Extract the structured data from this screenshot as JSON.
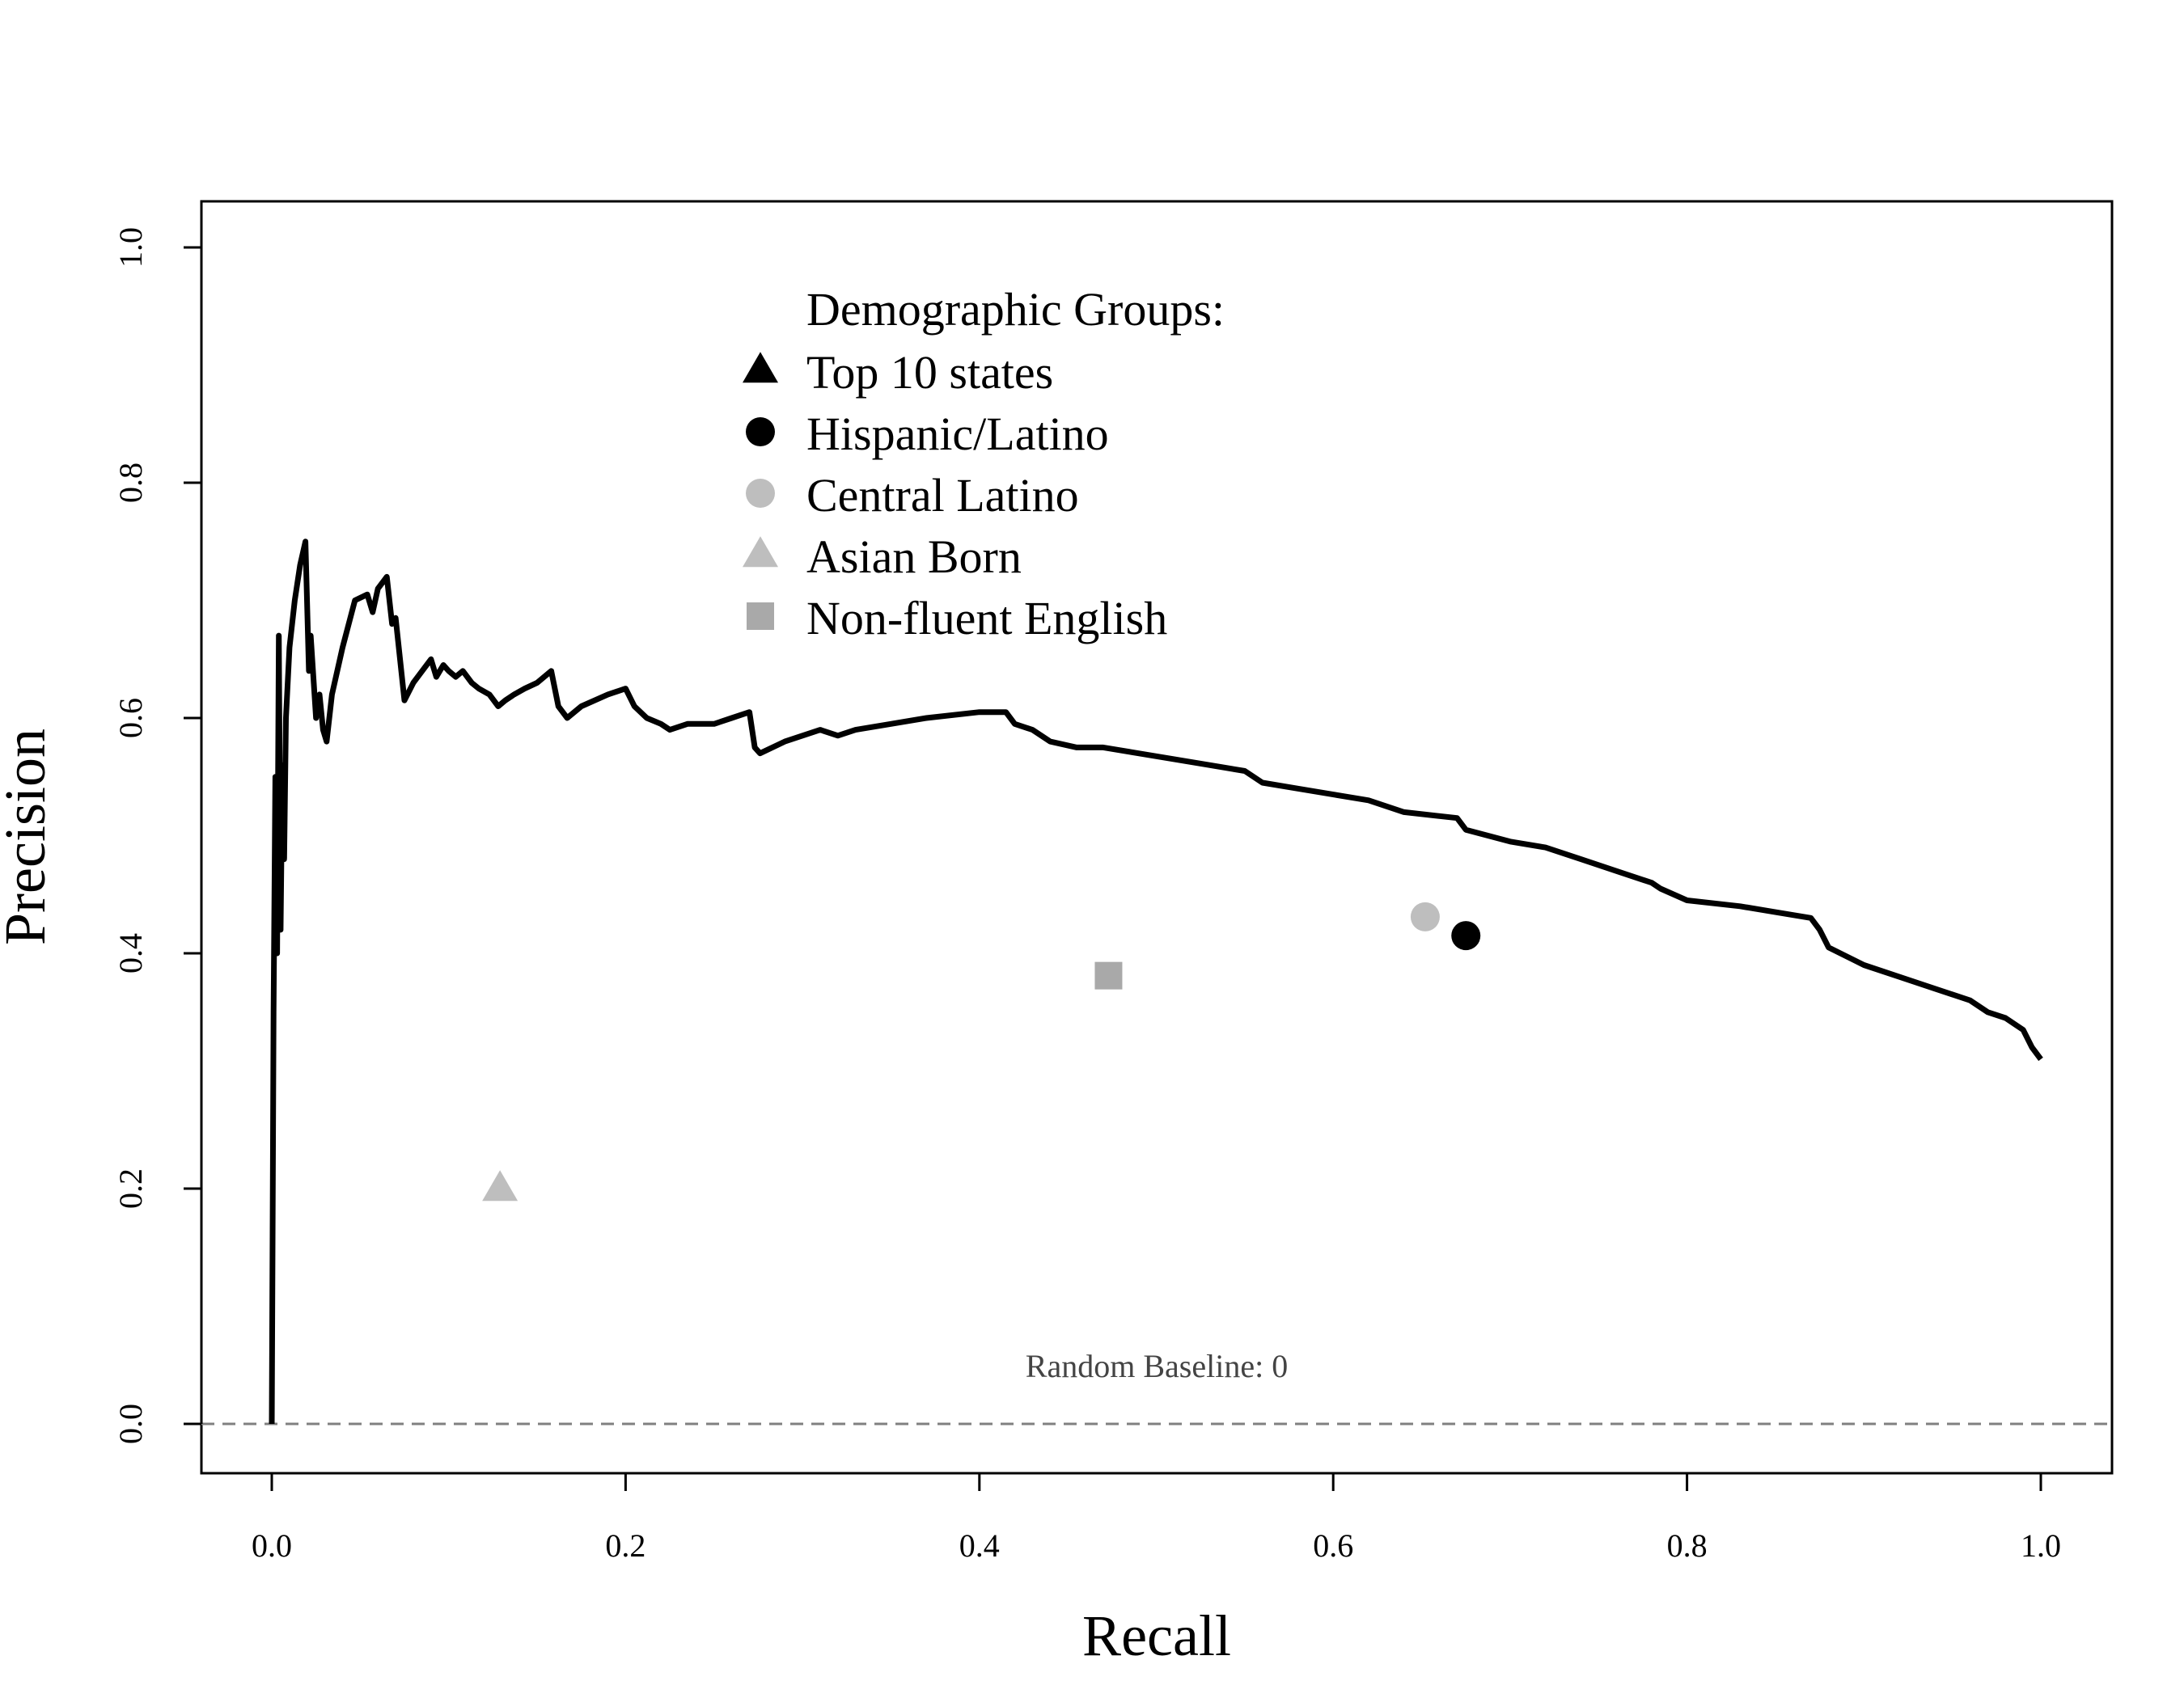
{
  "chart_data": {
    "type": "line",
    "xlabel": "Recall",
    "ylabel": "Precision",
    "xlim": [
      0,
      1
    ],
    "ylim": [
      0,
      1
    ],
    "x_ticks": [
      "0.0",
      "0.2",
      "0.4",
      "0.6",
      "0.8",
      "1.0"
    ],
    "y_ticks": [
      "0.0",
      "0.2",
      "0.4",
      "0.6",
      "0.8",
      "1.0"
    ],
    "grid": false,
    "legend_position": "top-center",
    "series": [
      {
        "color": "#000000",
        "x": [
          0.0,
          0.001,
          0.002,
          0.003,
          0.004,
          0.005,
          0.006,
          0.007,
          0.008,
          0.01,
          0.013,
          0.016,
          0.019,
          0.021,
          0.022,
          0.025,
          0.027,
          0.029,
          0.031,
          0.034,
          0.04,
          0.047,
          0.054,
          0.057,
          0.06,
          0.065,
          0.068,
          0.07,
          0.075,
          0.08,
          0.09,
          0.093,
          0.097,
          0.1,
          0.104,
          0.108,
          0.113,
          0.117,
          0.123,
          0.128,
          0.132,
          0.137,
          0.143,
          0.15,
          0.158,
          0.162,
          0.167,
          0.175,
          0.19,
          0.2,
          0.205,
          0.212,
          0.22,
          0.225,
          0.235,
          0.25,
          0.26,
          0.27,
          0.273,
          0.276,
          0.29,
          0.31,
          0.32,
          0.33,
          0.35,
          0.37,
          0.4,
          0.415,
          0.42,
          0.43,
          0.44,
          0.455,
          0.47,
          0.49,
          0.51,
          0.53,
          0.55,
          0.56,
          0.58,
          0.6,
          0.62,
          0.64,
          0.67,
          0.675,
          0.7,
          0.72,
          0.74,
          0.76,
          0.78,
          0.785,
          0.8,
          0.83,
          0.85,
          0.87,
          0.875,
          0.88,
          0.9,
          0.92,
          0.94,
          0.96,
          0.97,
          0.98,
          0.99,
          0.995,
          1.0
        ],
        "y": [
          0.0,
          0.35,
          0.55,
          0.4,
          0.67,
          0.42,
          0.56,
          0.48,
          0.6,
          0.66,
          0.7,
          0.73,
          0.75,
          0.64,
          0.67,
          0.6,
          0.62,
          0.59,
          0.58,
          0.62,
          0.66,
          0.7,
          0.705,
          0.69,
          0.71,
          0.72,
          0.68,
          0.685,
          0.615,
          0.63,
          0.65,
          0.635,
          0.645,
          0.64,
          0.635,
          0.64,
          0.63,
          0.625,
          0.62,
          0.61,
          0.615,
          0.62,
          0.625,
          0.63,
          0.64,
          0.61,
          0.6,
          0.61,
          0.62,
          0.625,
          0.61,
          0.6,
          0.595,
          0.59,
          0.595,
          0.595,
          0.6,
          0.605,
          0.575,
          0.57,
          0.58,
          0.59,
          0.585,
          0.59,
          0.595,
          0.6,
          0.605,
          0.605,
          0.595,
          0.59,
          0.58,
          0.575,
          0.575,
          0.57,
          0.565,
          0.56,
          0.555,
          0.545,
          0.54,
          0.535,
          0.53,
          0.52,
          0.515,
          0.505,
          0.495,
          0.49,
          0.48,
          0.47,
          0.46,
          0.455,
          0.445,
          0.44,
          0.435,
          0.43,
          0.42,
          0.405,
          0.39,
          0.38,
          0.37,
          0.36,
          0.35,
          0.345,
          0.335,
          0.32,
          0.31
        ]
      }
    ],
    "baseline": {
      "y": 0,
      "label": "Random Baseline: 0",
      "color": "#808080",
      "style": "dashed"
    },
    "legend": {
      "title": "Demographic Groups:",
      "items": [
        {
          "label": "Top 10 states",
          "marker": "triangle",
          "color": "#000000"
        },
        {
          "label": "Hispanic/Latino",
          "marker": "circle",
          "color": "#000000"
        },
        {
          "label": "Central Latino",
          "marker": "circle",
          "color": "#bebebe"
        },
        {
          "label": "Asian Born",
          "marker": "triangle",
          "color": "#bebebe"
        },
        {
          "label": "Non-fluent English",
          "marker": "square",
          "color": "#a9a9a9"
        }
      ]
    },
    "points": [
      {
        "group": "Hispanic/Latino",
        "marker": "circle",
        "color": "#000000",
        "x": 0.675,
        "y": 0.415
      },
      {
        "group": "Central Latino",
        "marker": "circle",
        "color": "#bebebe",
        "x": 0.652,
        "y": 0.431
      },
      {
        "group": "Asian Born",
        "marker": "triangle",
        "color": "#bebebe",
        "x": 0.129,
        "y": 0.2
      },
      {
        "group": "Non-fluent English",
        "marker": "square",
        "color": "#a9a9a9",
        "x": 0.473,
        "y": 0.381
      }
    ]
  }
}
